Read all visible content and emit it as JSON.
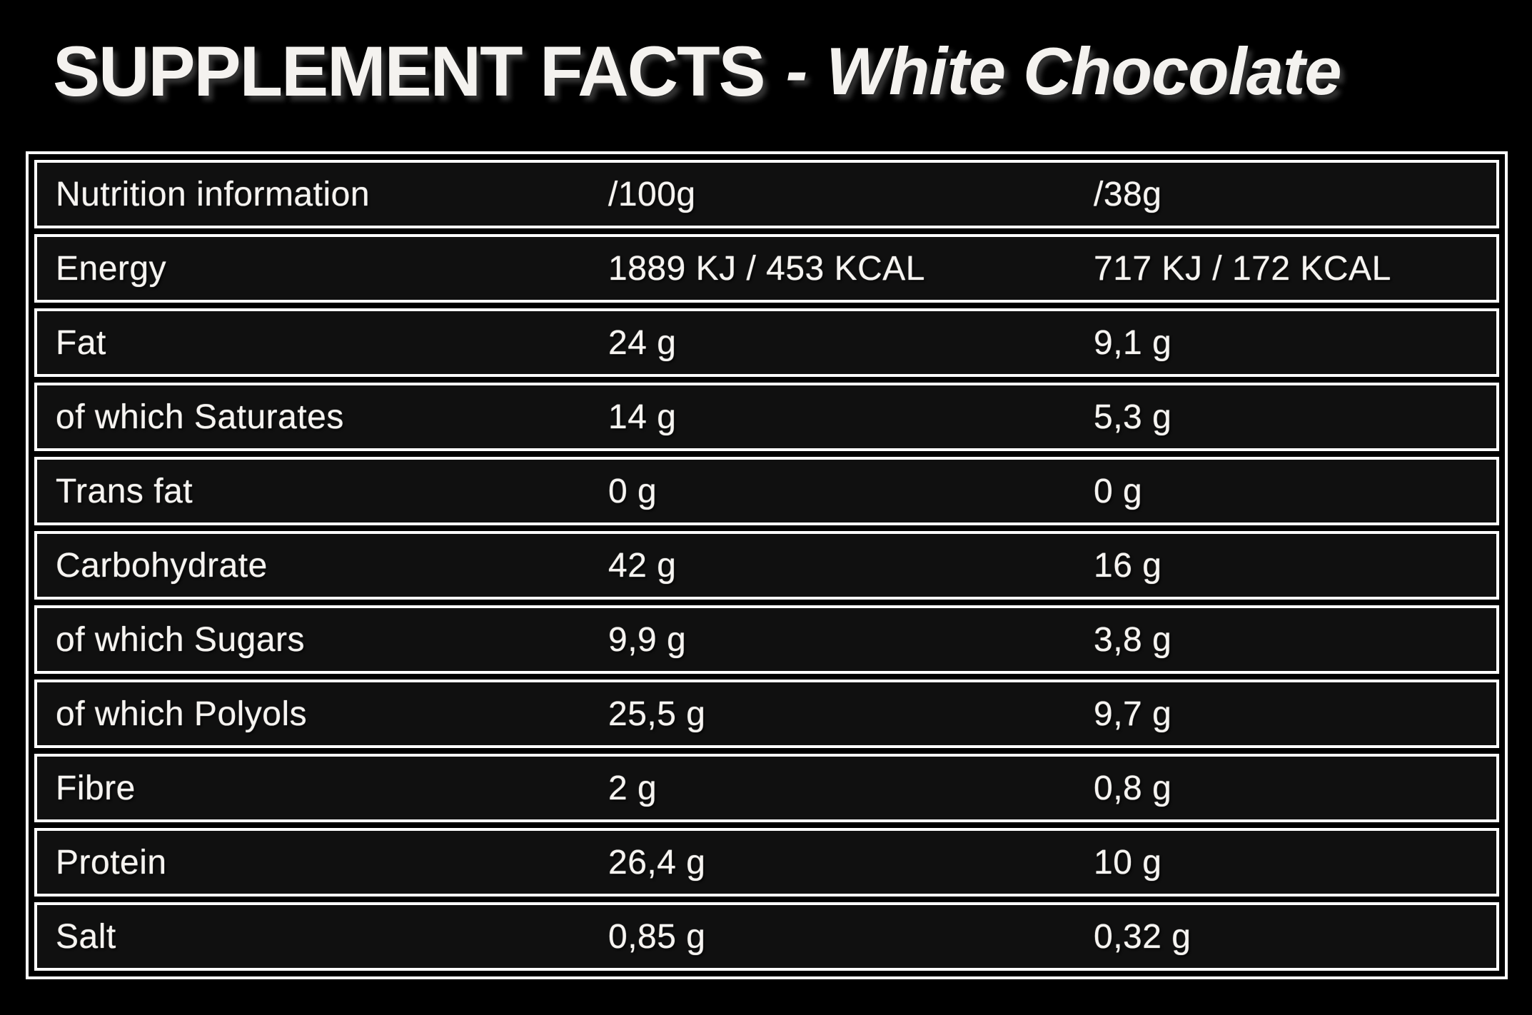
{
  "title": {
    "main": "SUPPLEMENT FACTS",
    "separator": "-",
    "flavor": "White Chocolate"
  },
  "table": {
    "header": {
      "col1": "Nutrition information",
      "col2": "/100g",
      "col3": "/38g"
    },
    "rows": [
      {
        "label": "Energy",
        "per100g": "1889 KJ / 453 KCAL",
        "per38g": "717 KJ / 172 KCAL"
      },
      {
        "label": "Fat",
        "per100g": "24 g",
        "per38g": "9,1 g"
      },
      {
        "label": "of which Saturates",
        "per100g": "14 g",
        "per38g": "5,3 g"
      },
      {
        "label": "Trans fat",
        "per100g": "0 g",
        "per38g": "0 g"
      },
      {
        "label": "Carbohydrate",
        "per100g": "42 g",
        "per38g": "16 g"
      },
      {
        "label": "of which Sugars",
        "per100g": "9,9 g",
        "per38g": "3,8 g"
      },
      {
        "label": "of which Polyols",
        "per100g": "25,5 g",
        "per38g": "9,7 g"
      },
      {
        "label": "Fibre",
        "per100g": "2 g",
        "per38g": "0,8 g"
      },
      {
        "label": "Protein",
        "per100g": "26,4 g",
        "per38g": "10 g"
      },
      {
        "label": "Salt",
        "per100g": "0,85 g",
        "per38g": "0,32 g"
      }
    ]
  },
  "colors": {
    "background": "#000000",
    "row_background": "#101010",
    "border": "#ffffff",
    "text": "#f6f4f1"
  }
}
